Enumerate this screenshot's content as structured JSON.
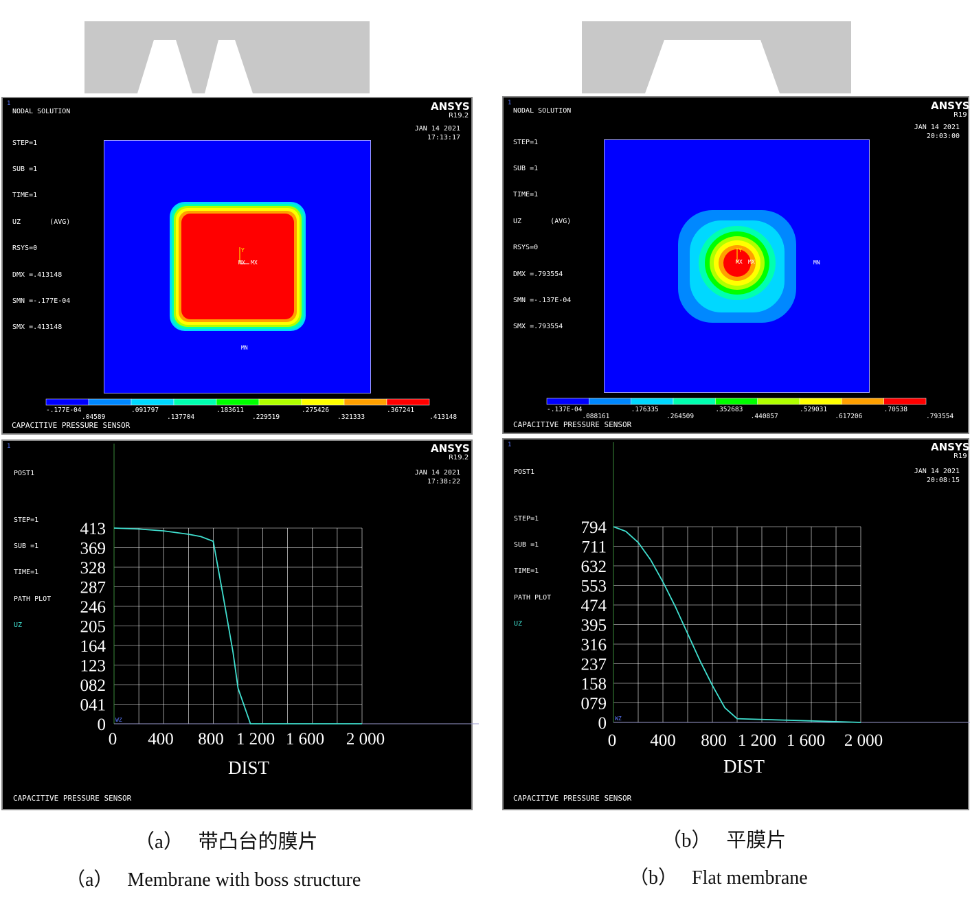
{
  "panels": {
    "a": {
      "contour": {
        "corner": "1",
        "title": "NODAL SOLUTION",
        "info": [
          "STEP=1",
          "SUB =1",
          "TIME=1",
          "UZ       (AVG)",
          "RSYS=0",
          "DMX =.413148",
          "SMN =-.177E-04",
          "SMX =.413148"
        ],
        "brand": "ANSYS",
        "version": "R19.2",
        "date": "JAN 14 2021",
        "time": "17:13:17",
        "mn_label": "MN",
        "legend_top": [
          "-.177E-04",
          ".091797",
          ".183611",
          ".275426",
          ".367241"
        ],
        "legend_bottom": [
          ".04589",
          ".137704",
          ".229519",
          ".321333",
          ".413148"
        ],
        "footer": "CAPACITIVE PRESSURE SENSOR"
      },
      "path": {
        "corner": "1",
        "info": [
          "POST1",
          "",
          "STEP=1",
          "SUB =1",
          "TIME=1",
          "PATH PLOT"
        ],
        "uz": "UZ",
        "brand": "ANSYS",
        "version": "R19.2",
        "date": "JAN 14 2021",
        "time": "17:38:22",
        "footer": "CAPACITIVE PRESSURE SENSOR"
      }
    },
    "b": {
      "contour": {
        "corner": "1",
        "title": "NODAL SOLUTION",
        "info": [
          "STEP=1",
          "SUB =1",
          "TIME=1",
          "UZ       (AVG)",
          "RSYS=0",
          "DMX =.793554",
          "SMN =-.137E-04",
          "SMX =.793554"
        ],
        "brand": "ANSYS",
        "version": "R19",
        "date": "JAN 14 2021",
        "time": "20:03:00",
        "mn_label": "MN",
        "legend_top": [
          "-.137E-04",
          ".176335",
          ".352683",
          ".529031",
          ".70538"
        ],
        "legend_bottom": [
          ".088161",
          ".264509",
          ".440857",
          ".617206",
          ".793554"
        ],
        "footer": "CAPACITIVE PRESSURE SENSOR"
      },
      "path": {
        "corner": "1",
        "info": [
          "POST1",
          "",
          "STEP=1",
          "SUB =1",
          "TIME=1",
          "PATH PLOT"
        ],
        "uz": "UZ",
        "brand": "ANSYS",
        "version": "R19",
        "date": "JAN 14 2021",
        "time": "20:08:15",
        "footer": "CAPACITIVE PRESSURE SENSOR"
      }
    }
  },
  "captions": {
    "a_cn": "（a）   带凸台的膜片",
    "a_en": "（a）   Membrane with boss structure",
    "b_cn": "（b）   平膜片",
    "b_en": "（b）   Flat membrane"
  },
  "colors": {
    "legend": [
      "#0000ff",
      "#0088ff",
      "#00d8ff",
      "#00ffb0",
      "#00ff00",
      "#b0ff00",
      "#ffff00",
      "#ffa000",
      "#ff0000"
    ],
    "field": "#0000ff",
    "curve": "#40e0d0",
    "grid": "#ffffff",
    "shape_gray": "#c8c8c8"
  },
  "chart_data": [
    {
      "type": "line",
      "xlabel": "DIST",
      "ylabel": "UZ",
      "xticks": [
        "0",
        "400",
        "800",
        "1 200",
        "1 600",
        "2 000"
      ],
      "yticks": [
        "413",
        "369",
        "328",
        "287",
        "246",
        "205",
        "164",
        "123",
        "082",
        "041",
        "0"
      ],
      "xlim": [
        0,
        2000
      ],
      "ylim": [
        0,
        413
      ],
      "x": [
        0,
        200,
        400,
        600,
        700,
        800,
        880,
        960,
        1000,
        1100,
        2000
      ],
      "y": [
        413,
        411,
        407,
        400,
        395,
        385,
        270,
        150,
        75,
        0,
        0
      ]
    },
    {
      "type": "line",
      "xlabel": "DIST",
      "ylabel": "UZ",
      "xticks": [
        "0",
        "400",
        "800",
        "1 200",
        "1 600",
        "2 000"
      ],
      "yticks": [
        "794",
        "711",
        "632",
        "553",
        "474",
        "395",
        "316",
        "237",
        "158",
        "079",
        "0"
      ],
      "xlim": [
        0,
        2000
      ],
      "ylim": [
        0,
        794
      ],
      "x": [
        0,
        100,
        200,
        300,
        400,
        500,
        600,
        700,
        800,
        900,
        1000,
        2000
      ],
      "y": [
        794,
        775,
        730,
        660,
        570,
        470,
        360,
        250,
        150,
        60,
        15,
        0
      ]
    }
  ]
}
